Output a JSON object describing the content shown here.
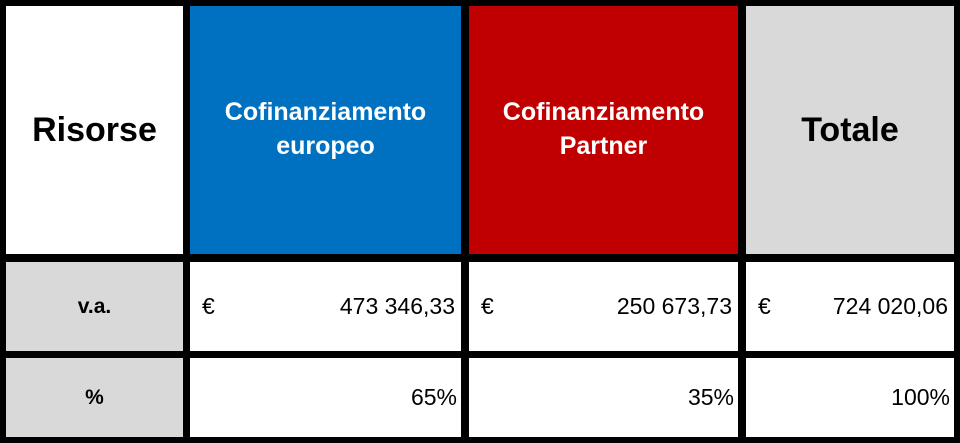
{
  "table": {
    "header": [
      "Risorse",
      "Cofinanziamento europeo",
      "Cofinanziamento Partner",
      "Totale"
    ],
    "rows": [
      {
        "label": "v.a.",
        "cells": [
          {
            "currency": "€",
            "value": "473 346,33"
          },
          {
            "currency": "€",
            "value": "250 673,73"
          },
          {
            "currency": "€",
            "value": "724 020,06"
          }
        ]
      },
      {
        "label": "%",
        "cells": [
          "65%",
          "35%",
          "100%"
        ]
      }
    ]
  }
}
